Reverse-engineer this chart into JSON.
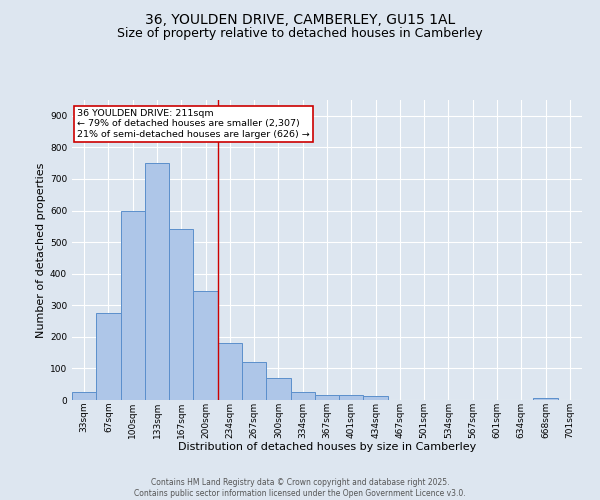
{
  "title_line1": "36, YOULDEN DRIVE, CAMBERLEY, GU15 1AL",
  "title_line2": "Size of property relative to detached houses in Camberley",
  "xlabel": "Distribution of detached houses by size in Camberley",
  "ylabel": "Number of detached properties",
  "bar_labels": [
    "33sqm",
    "67sqm",
    "100sqm",
    "133sqm",
    "167sqm",
    "200sqm",
    "234sqm",
    "267sqm",
    "300sqm",
    "334sqm",
    "367sqm",
    "401sqm",
    "434sqm",
    "467sqm",
    "501sqm",
    "534sqm",
    "567sqm",
    "601sqm",
    "634sqm",
    "668sqm",
    "701sqm"
  ],
  "bar_values": [
    25,
    275,
    600,
    750,
    540,
    345,
    180,
    120,
    70,
    25,
    15,
    15,
    12,
    0,
    0,
    0,
    0,
    0,
    0,
    5,
    0
  ],
  "bar_color": "#aec6e8",
  "bar_edge_color": "#5b8fcc",
  "ylim": [
    0,
    950
  ],
  "yticks": [
    0,
    100,
    200,
    300,
    400,
    500,
    600,
    700,
    800,
    900
  ],
  "vline_x": 5.5,
  "vline_color": "#cc0000",
  "annotation_text": "36 YOULDEN DRIVE: 211sqm\n← 79% of detached houses are smaller (2,307)\n21% of semi-detached houses are larger (626) →",
  "annotation_box_color": "#cc0000",
  "bg_color": "#dde6f0",
  "grid_color": "#ffffff",
  "footer_line1": "Contains HM Land Registry data © Crown copyright and database right 2025.",
  "footer_line2": "Contains public sector information licensed under the Open Government Licence v3.0.",
  "title_fontsize": 10,
  "subtitle_fontsize": 9,
  "axis_label_fontsize": 8,
  "tick_fontsize": 6.5,
  "annotation_fontsize": 6.8,
  "footer_fontsize": 5.5
}
